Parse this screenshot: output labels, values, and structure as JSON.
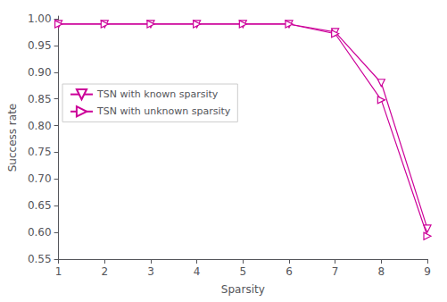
{
  "chart_data": {
    "type": "line",
    "xlabel": "Sparsity",
    "ylabel": "Success rate",
    "x": [
      1,
      2,
      3,
      4,
      5,
      6,
      7,
      8,
      9
    ],
    "series": [
      {
        "name": "TSN with known sparsity",
        "color": "#CC0099",
        "marker": "triangle-down",
        "line_style": "solid",
        "values": [
          0.99,
          0.99,
          0.99,
          0.99,
          0.99,
          0.99,
          0.975,
          0.88,
          0.607
        ]
      },
      {
        "name": "TSN with unknown sparsity",
        "color": "#CC0099",
        "marker": "triangle-right",
        "line_style": "solid",
        "values": [
          0.99,
          0.99,
          0.99,
          0.99,
          0.99,
          0.99,
          0.972,
          0.848,
          0.593
        ]
      }
    ],
    "xlim": [
      1,
      9
    ],
    "xticks": [
      1,
      2,
      3,
      4,
      5,
      6,
      7,
      8,
      9
    ],
    "ylim": [
      0.55,
      1.005
    ],
    "yticks": [
      0.55,
      {
        "value": 0.6,
        "label": "0.60"
      },
      0.65,
      {
        "value": 0.7,
        "label": "0.70"
      },
      0.75,
      {
        "value": 0.8,
        "label": "0.80"
      },
      0.85,
      {
        "value": 0.9,
        "label": "0.90"
      },
      0.95,
      {
        "value": 1.0,
        "label": "1.00"
      }
    ],
    "grid": false,
    "legend": "upper left"
  }
}
